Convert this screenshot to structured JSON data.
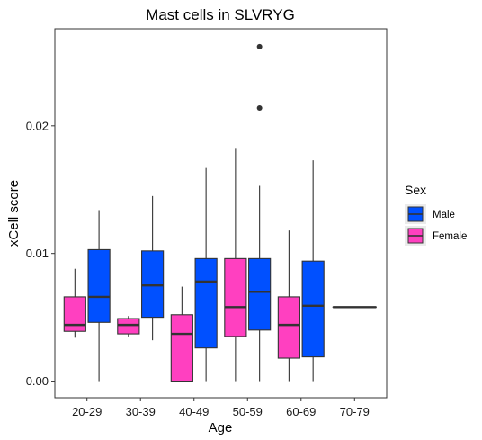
{
  "chart_data": {
    "type": "boxplot",
    "title": "Mast cells in SLVRYG",
    "xlabel": "Age",
    "ylabel": "xCell score",
    "categories": [
      "20-29",
      "30-39",
      "40-49",
      "50-59",
      "60-69",
      "70-79"
    ],
    "ylim": [
      -0.0013,
      0.0276
    ],
    "yticks": [
      0.0,
      0.01,
      0.02
    ],
    "ytick_labels": [
      "0.00",
      "0.01",
      "0.02"
    ],
    "grid": false,
    "legend": {
      "title": "Sex",
      "position": "right",
      "entries": [
        {
          "label": "Male",
          "color": "#0050FF"
        },
        {
          "label": "Female",
          "color": "#FF40C0"
        }
      ]
    },
    "series": [
      {
        "name": "Female",
        "color": "#FF40C0",
        "boxes": [
          {
            "category": "20-29",
            "whisker_low": 0.0034,
            "q1": 0.0039,
            "median": 0.0044,
            "q3": 0.0066,
            "whisker_high": 0.0088,
            "outliers": []
          },
          {
            "category": "30-39",
            "whisker_low": 0.0035,
            "q1": 0.0037,
            "median": 0.0044,
            "q3": 0.0049,
            "whisker_high": 0.0051,
            "outliers": []
          },
          {
            "category": "40-49",
            "whisker_low": 0.0,
            "q1": 0.0,
            "median": 0.0037,
            "q3": 0.0052,
            "whisker_high": 0.0074,
            "outliers": []
          },
          {
            "category": "50-59",
            "whisker_low": 0.0,
            "q1": 0.0035,
            "median": 0.0058,
            "q3": 0.0096,
            "whisker_high": 0.0182,
            "outliers": []
          },
          {
            "category": "60-69",
            "whisker_low": 0.0,
            "q1": 0.0018,
            "median": 0.0044,
            "q3": 0.0066,
            "whisker_high": 0.0118,
            "outliers": []
          },
          {
            "category": "70-79",
            "whisker_low": 0.0058,
            "q1": 0.0058,
            "median": 0.0058,
            "q3": 0.0058,
            "whisker_high": 0.0058,
            "outliers": [],
            "full_width": true
          }
        ]
      },
      {
        "name": "Male",
        "color": "#0050FF",
        "boxes": [
          {
            "category": "20-29",
            "whisker_low": 0.0,
            "q1": 0.0046,
            "median": 0.0066,
            "q3": 0.0103,
            "whisker_high": 0.0134,
            "outliers": []
          },
          {
            "category": "30-39",
            "whisker_low": 0.0032,
            "q1": 0.005,
            "median": 0.0075,
            "q3": 0.0102,
            "whisker_high": 0.0145,
            "outliers": []
          },
          {
            "category": "40-49",
            "whisker_low": 0.0,
            "q1": 0.0026,
            "median": 0.0078,
            "q3": 0.0096,
            "whisker_high": 0.0167,
            "outliers": []
          },
          {
            "category": "50-59",
            "whisker_low": 0.0,
            "q1": 0.004,
            "median": 0.007,
            "q3": 0.0096,
            "whisker_high": 0.0153,
            "outliers": [
              0.0214,
              0.0262
            ]
          },
          {
            "category": "60-69",
            "whisker_low": 0.0,
            "q1": 0.0019,
            "median": 0.0059,
            "q3": 0.0094,
            "whisker_high": 0.0173,
            "outliers": []
          }
        ]
      }
    ]
  }
}
